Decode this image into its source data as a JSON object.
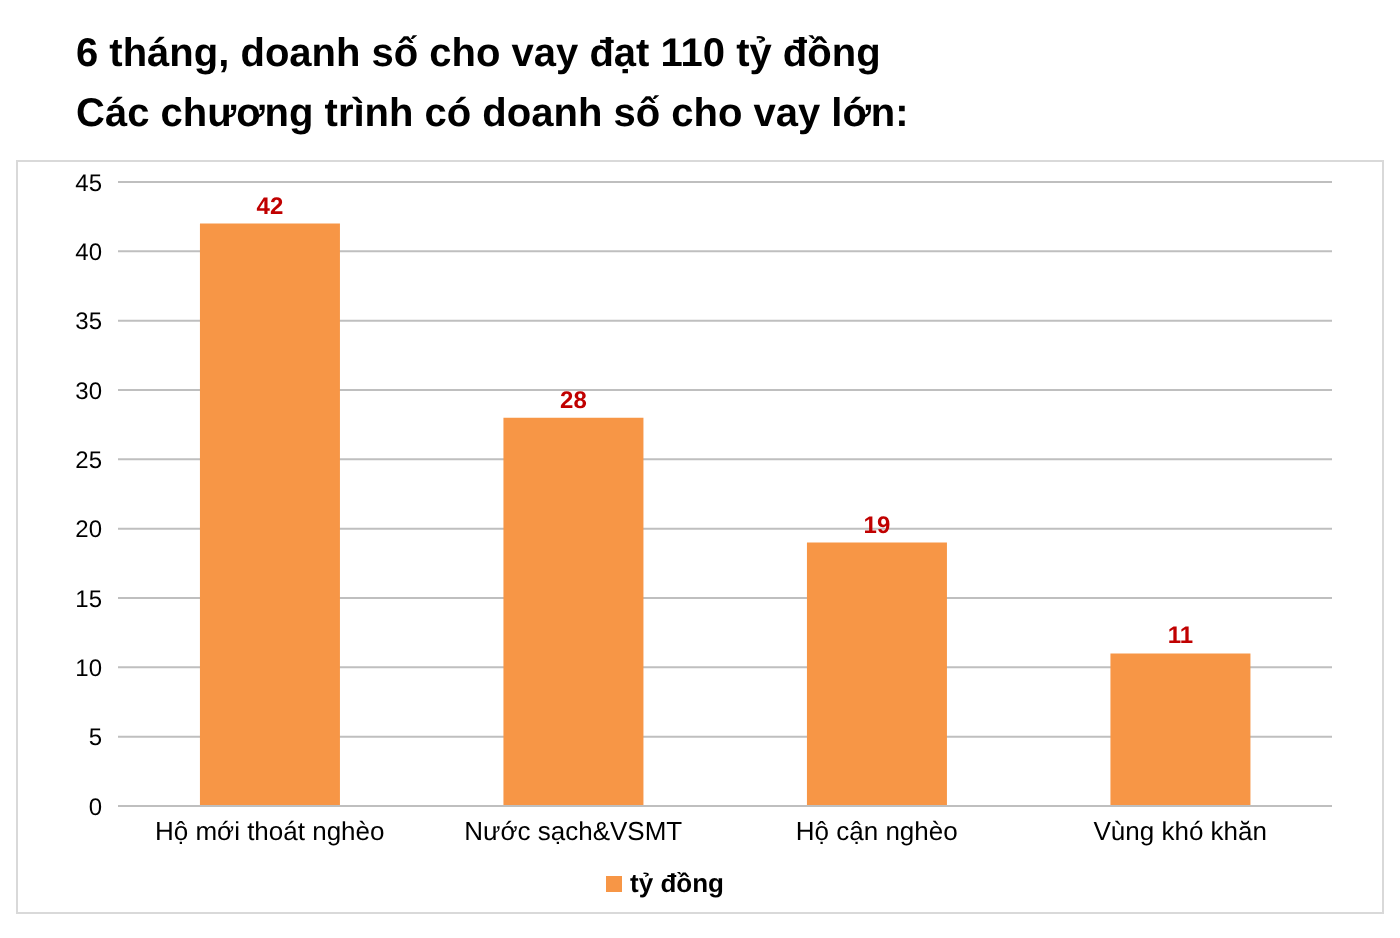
{
  "chart_data": {
    "type": "bar",
    "title": "6 tháng, doanh số cho vay đạt 110 tỷ đồng",
    "subtitle": "Các chương trình có doanh số cho vay lớn:",
    "categories": [
      "Hộ mới thoát nghèo",
      "Nước sạch&VSMT",
      "Hộ cận nghèo",
      "Vùng khó khăn"
    ],
    "series": [
      {
        "name": "tỷ đồng",
        "color": "#f79646",
        "values": [
          42,
          28,
          19,
          11
        ]
      }
    ],
    "ylim": [
      0,
      45
    ],
    "yticks": [
      0,
      5,
      10,
      15,
      20,
      25,
      30,
      35,
      40,
      45
    ],
    "grid": "y",
    "legend": "bottom",
    "data_labels": true
  }
}
